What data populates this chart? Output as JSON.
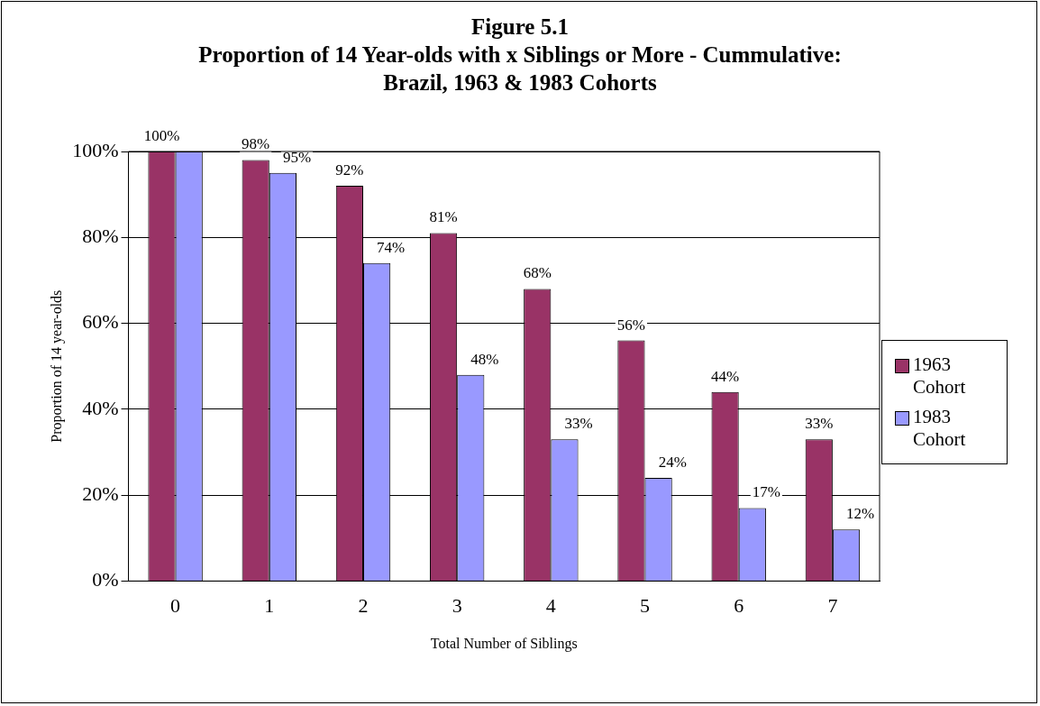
{
  "chart_data": {
    "type": "bar",
    "title": "Figure 5.1",
    "subtitle": "Proportion of 14 Year-olds with x Siblings or More - Cummulative: Brazil, 1963 & 1983 Cohorts",
    "xlabel": "Total Number of Siblings",
    "ylabel": "Proportion of 14 year-olds",
    "categories": [
      "0",
      "1",
      "2",
      "3",
      "4",
      "5",
      "6",
      "7"
    ],
    "series": [
      {
        "name": "1963 Cohort",
        "color": "#993366",
        "values": [
          100,
          98,
          92,
          81,
          68,
          56,
          44,
          33
        ],
        "value_labels": [
          "100%",
          "98%",
          "92%",
          "81%",
          "68%",
          "56%",
          "44%",
          "33%"
        ]
      },
      {
        "name": "1983 Cohort",
        "color": "#9999ff",
        "values": [
          100,
          95,
          74,
          48,
          33,
          24,
          17,
          12
        ],
        "value_labels": [
          null,
          "95%",
          "74%",
          "48%",
          "33%",
          "24%",
          "17%",
          "12%"
        ]
      }
    ],
    "ylim": [
      0,
      100
    ],
    "yticks": [
      {
        "value": 0,
        "label": "0%"
      },
      {
        "value": 20,
        "label": "20%"
      },
      {
        "value": 40,
        "label": "40%"
      },
      {
        "value": 60,
        "label": "60%"
      },
      {
        "value": 80,
        "label": "80%"
      },
      {
        "value": 100,
        "label": "100%"
      }
    ],
    "grid": "y",
    "legend": "right"
  }
}
